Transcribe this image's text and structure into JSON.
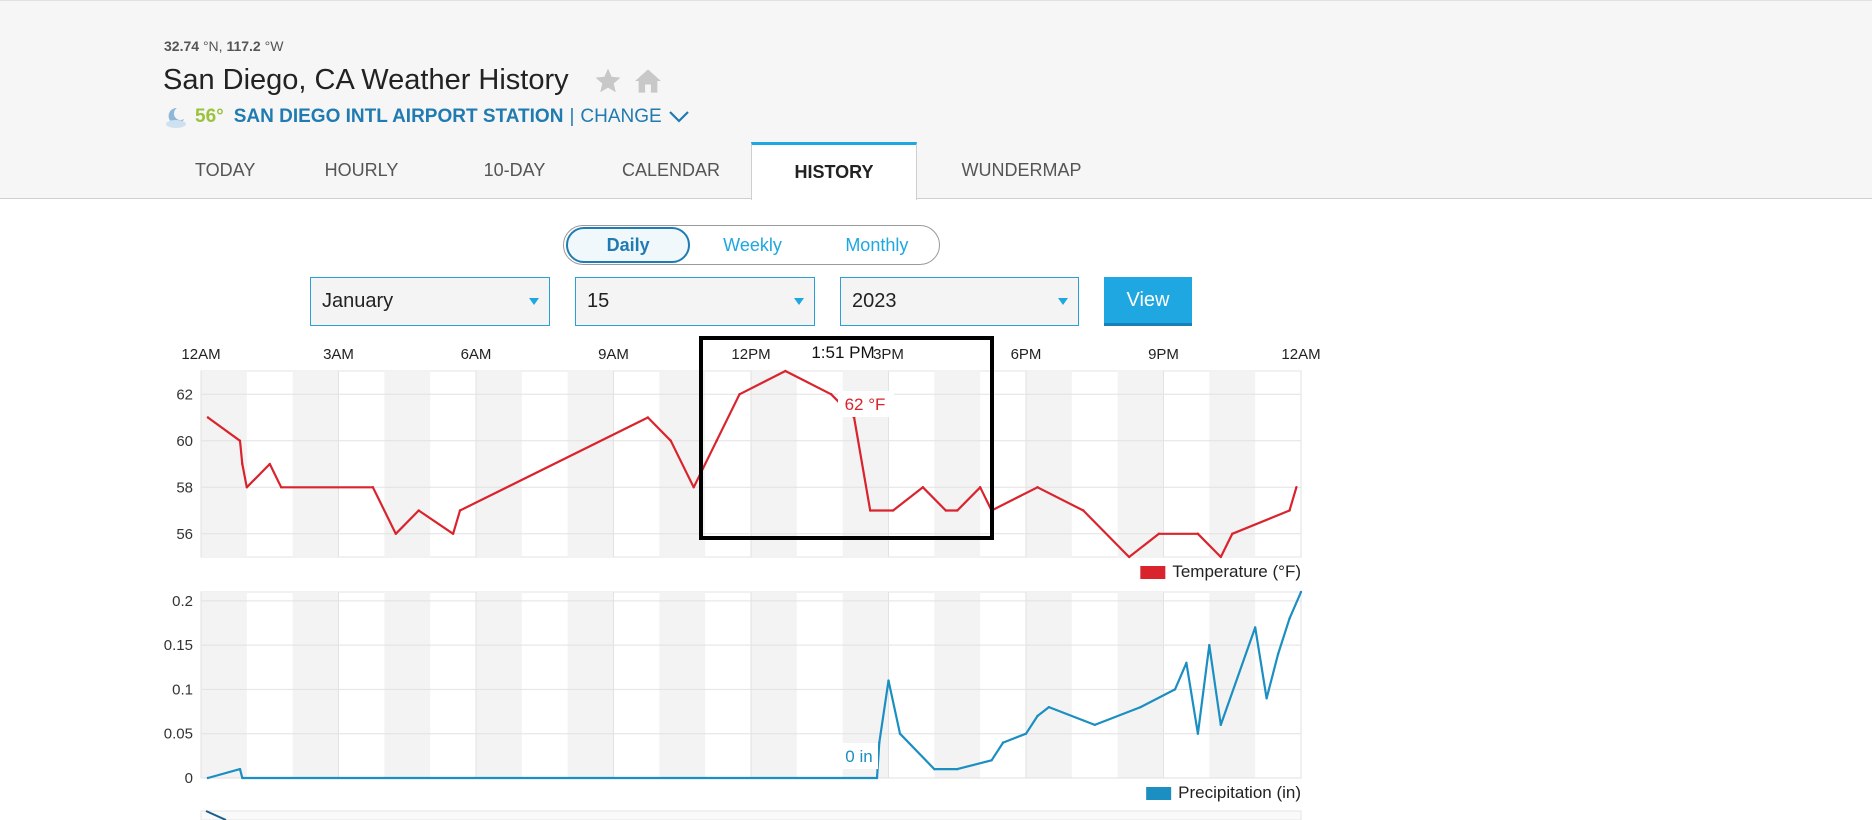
{
  "location": {
    "lat": "32.74",
    "lat_unit": "°N,",
    "lon": "117.2",
    "lon_unit": "°W",
    "title": "San Diego, CA Weather History",
    "current_temp": "56°",
    "station": "SAN DIEGO INTL AIRPORT STATION",
    "separator": "|",
    "change_label": "CHANGE"
  },
  "tabs": [
    "TODAY",
    "HOURLY",
    "10-DAY",
    "CALENDAR",
    "HISTORY",
    "WUNDERMAP"
  ],
  "active_tab": "HISTORY",
  "range_options": [
    "Daily",
    "Weekly",
    "Monthly"
  ],
  "active_range": "Daily",
  "date_select": {
    "month": "January",
    "day": "15",
    "year": "2023",
    "view_label": "View"
  },
  "colors": {
    "accent": "#1ea7e1",
    "link": "#1f7bb1",
    "temperature": "#d9232d",
    "precipitation": "#1b8ec2"
  },
  "chart_data": [
    {
      "type": "line",
      "x_tick_labels": [
        "12AM",
        "3AM",
        "6AM",
        "9AM",
        "12PM",
        "3PM",
        "6PM",
        "9PM",
        "12AM"
      ],
      "xlim": [
        0,
        24
      ],
      "ylim": [
        55,
        63
      ],
      "y_ticks": [
        56,
        58,
        60,
        62
      ],
      "grid": true,
      "legend": "bottom-right",
      "series": [
        {
          "name": "Temperature (°F)",
          "color": "#d9232d",
          "x": [
            0.15,
            0.85,
            0.9,
            1.0,
            1.5,
            1.75,
            3.75,
            4.25,
            4.75,
            5.5,
            5.65,
            9.75,
            10.25,
            10.75,
            11.25,
            11.75,
            12.75,
            13.75,
            14.25,
            14.6,
            15.1,
            15.75,
            16.25,
            16.5,
            17.0,
            17.25,
            18.25,
            19.25,
            20.25,
            20.9,
            21.75,
            22.25,
            22.5,
            23.75,
            23.9
          ],
          "y": [
            61,
            60,
            59,
            58,
            59,
            58,
            58,
            56,
            57,
            56,
            57,
            61,
            60,
            58,
            60,
            62,
            63,
            62,
            61,
            57,
            57,
            58,
            57,
            57,
            58,
            57,
            58,
            57,
            55,
            56,
            56,
            55,
            56,
            57,
            58
          ]
        }
      ],
      "tooltip": {
        "time": "1:51 PM",
        "value_label": "62 °F"
      }
    },
    {
      "type": "line",
      "x_tick_labels": [],
      "xlim": [
        0,
        24
      ],
      "ylim": [
        0,
        0.21
      ],
      "y_tick_labels": [
        "0",
        "0.05",
        "0.1",
        "0.15",
        "0.2"
      ],
      "y_ticks": [
        0,
        0.05,
        0.1,
        0.15,
        0.2
      ],
      "grid": true,
      "legend": "bottom-right",
      "series": [
        {
          "name": "Precipitation (in)",
          "color": "#1b8ec2",
          "x": [
            0.15,
            0.85,
            0.9,
            14.75,
            14.8,
            15.0,
            15.25,
            16.0,
            16.5,
            17.25,
            17.5,
            18.0,
            18.25,
            18.5,
            19.5,
            20.5,
            21.25,
            21.5,
            21.75,
            22.0,
            22.25,
            23.0,
            23.25,
            23.5,
            23.75,
            24.0
          ],
          "y": [
            0,
            0.01,
            0,
            0,
            0.04,
            0.11,
            0.05,
            0.01,
            0.01,
            0.02,
            0.04,
            0.05,
            0.07,
            0.08,
            0.06,
            0.08,
            0.1,
            0.13,
            0.05,
            0.15,
            0.06,
            0.17,
            0.09,
            0.14,
            0.18,
            0.21
          ]
        }
      ],
      "tooltip": {
        "value_label": "0 in"
      }
    }
  ]
}
